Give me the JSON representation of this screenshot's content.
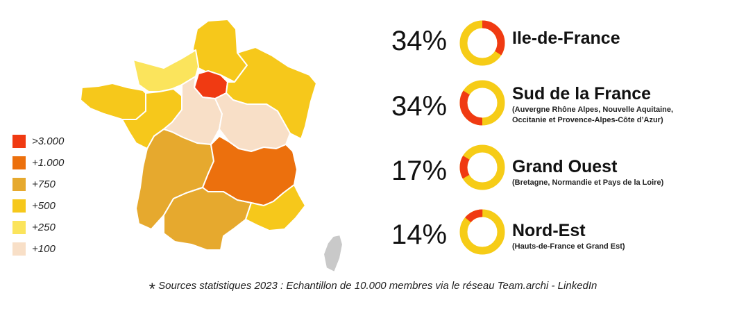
{
  "colors": {
    "gt3000": "#f03a12",
    "gt1000": "#ec700d",
    "gt750": "#e6a92e",
    "gt500": "#f6c81b",
    "gt250": "#fbe45c",
    "gt100": "#f8dfc7",
    "donut_track": "#f6cc17",
    "donut_share": "#f03a12",
    "corsica": "#c9c9c9"
  },
  "legend": {
    "items": [
      {
        "label": ">3.000",
        "color": "#f03a12"
      },
      {
        "label": "+1.000",
        "color": "#ec700d"
      },
      {
        "label": "+750",
        "color": "#e6a92e"
      },
      {
        "label": "+500",
        "color": "#f6c81b"
      },
      {
        "label": "+250",
        "color": "#fbe45c"
      },
      {
        "label": "+100",
        "color": "#f8dfc7"
      }
    ]
  },
  "chart_data": {
    "type": "pie",
    "categories": [
      "Ile-de-France",
      "Sud de la France",
      "Grand Ouest",
      "Nord-Est"
    ],
    "values": [
      34,
      34,
      17,
      14
    ],
    "unit": "%"
  },
  "stats": [
    {
      "percent": "34%",
      "value": 34,
      "region": "Ile-de-France",
      "subtitle": ""
    },
    {
      "percent": "34%",
      "value": 34,
      "region": "Sud de la France",
      "subtitle": "(Auvergne Rhône Alpes, Nouvelle Aquitaine,\nOccitanie et Provence-Alpes-Côte d’Azur)"
    },
    {
      "percent": "17%",
      "value": 17,
      "region": "Grand Ouest",
      "subtitle": "(Bretagne, Normandie et Pays de la Loire)"
    },
    {
      "percent": "14%",
      "value": 14,
      "region": "Nord-Est",
      "subtitle": "(Hauts-de-France et Grand Est)"
    }
  ],
  "footnote": {
    "star": "*",
    "text": "Sources statistiques 2023 : Echantillon de 10.000 membres via le réseau Team.archi - LinkedIn"
  }
}
